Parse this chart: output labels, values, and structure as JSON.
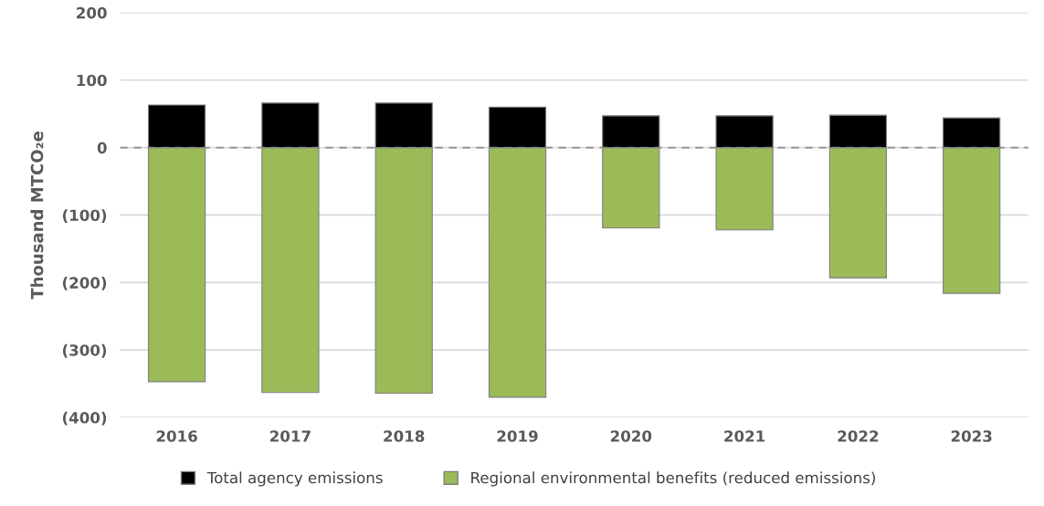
{
  "chart_data": {
    "type": "bar",
    "stacked": true,
    "ylabel": "Thousand MTCO₂e",
    "categories": [
      "2016",
      "2017",
      "2018",
      "2019",
      "2020",
      "2021",
      "2022",
      "2023"
    ],
    "series": [
      {
        "name": "Total agency emissions",
        "color": "#000000",
        "values": [
          63,
          66,
          66,
          60,
          47,
          47,
          48,
          44
        ]
      },
      {
        "name": "Regional environmental benefits (reduced emissions)",
        "color": "#9bbb59",
        "values": [
          -347,
          -363,
          -364,
          -370,
          -119,
          -122,
          -193,
          -216
        ]
      }
    ],
    "ylim": [
      -400,
      200
    ],
    "yticks": [
      {
        "value": -400,
        "label": "(400)"
      },
      {
        "value": -300,
        "label": "(300)"
      },
      {
        "value": -200,
        "label": "(200)"
      },
      {
        "value": -100,
        "label": "(100)"
      },
      0,
      100,
      200
    ],
    "ref_lines": [
      {
        "axis": "y",
        "value": 0,
        "color": "#8c8c8c",
        "line_style": "dashed"
      }
    ],
    "grid": "y",
    "legend": "bottom"
  }
}
